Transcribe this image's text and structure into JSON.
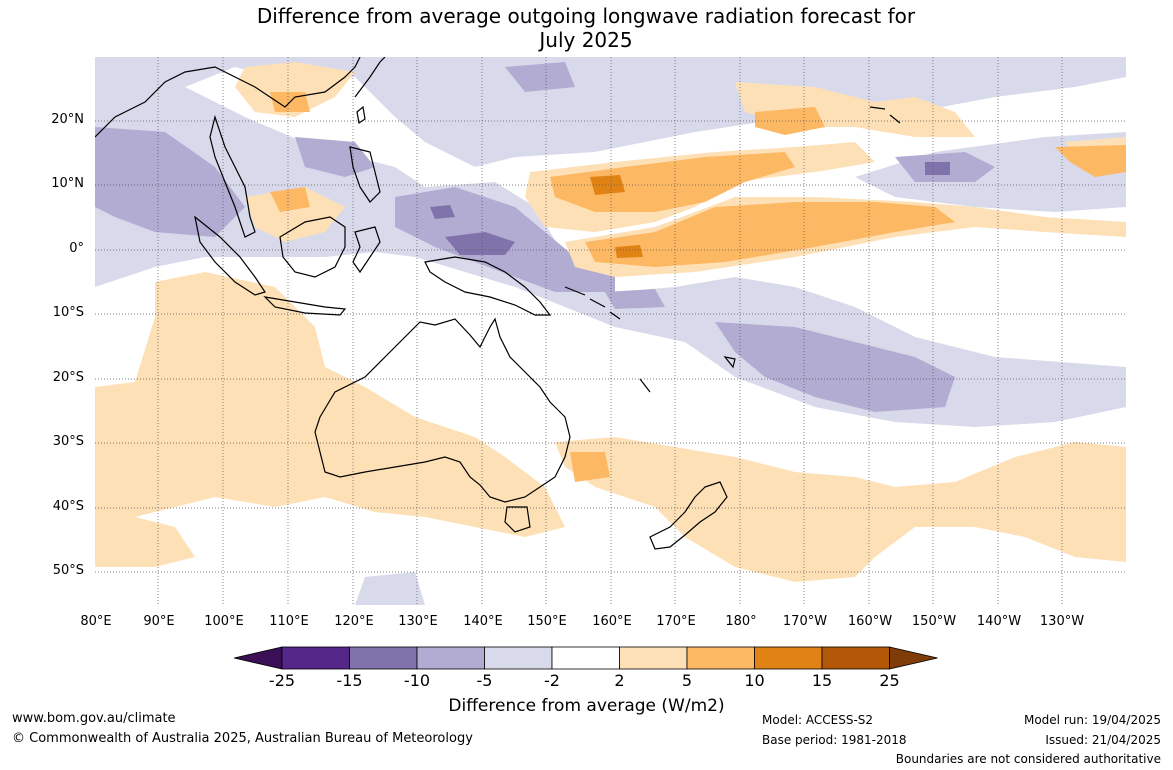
{
  "title_line1": "Difference from average outgoing longwave radiation forecast for",
  "title_line2": "July 2025",
  "lat_labels": [
    "20°N",
    "10°N",
    "0°",
    "10°S",
    "20°S",
    "30°S",
    "40°S",
    "50°S"
  ],
  "lon_labels": [
    "80°E",
    "90°E",
    "100°E",
    "110°E",
    "120°E",
    "130°E",
    "140°E",
    "150°E",
    "160°E",
    "170°E",
    "180°",
    "170°W",
    "160°W",
    "150°W",
    "140°W",
    "130°W"
  ],
  "legend": {
    "ticks": [
      "-25",
      "-15",
      "-10",
      "-5",
      "-2",
      "2",
      "5",
      "10",
      "15",
      "25"
    ],
    "colors": [
      "#3b0f56",
      "#542788",
      "#8073ac",
      "#b2abd2",
      "#d8daeb",
      "#ffffff",
      "#fee0b6",
      "#fdb863",
      "#e08214",
      "#b35806",
      "#7f3b08"
    ],
    "title": "Difference from average (W/m2)"
  },
  "footer": {
    "url": "www.bom.gov.au/climate",
    "copyright": "© Commonwealth of Australia 2025, Australian Bureau of Meteorology",
    "model": "Model: ACCESS-S2",
    "base_period": "Base period: 1981-2018",
    "model_run": "Model run: 19/04/2025",
    "issued": "Issued: 21/04/2025",
    "disclaimer": "Boundaries are not considered authoritative"
  }
}
